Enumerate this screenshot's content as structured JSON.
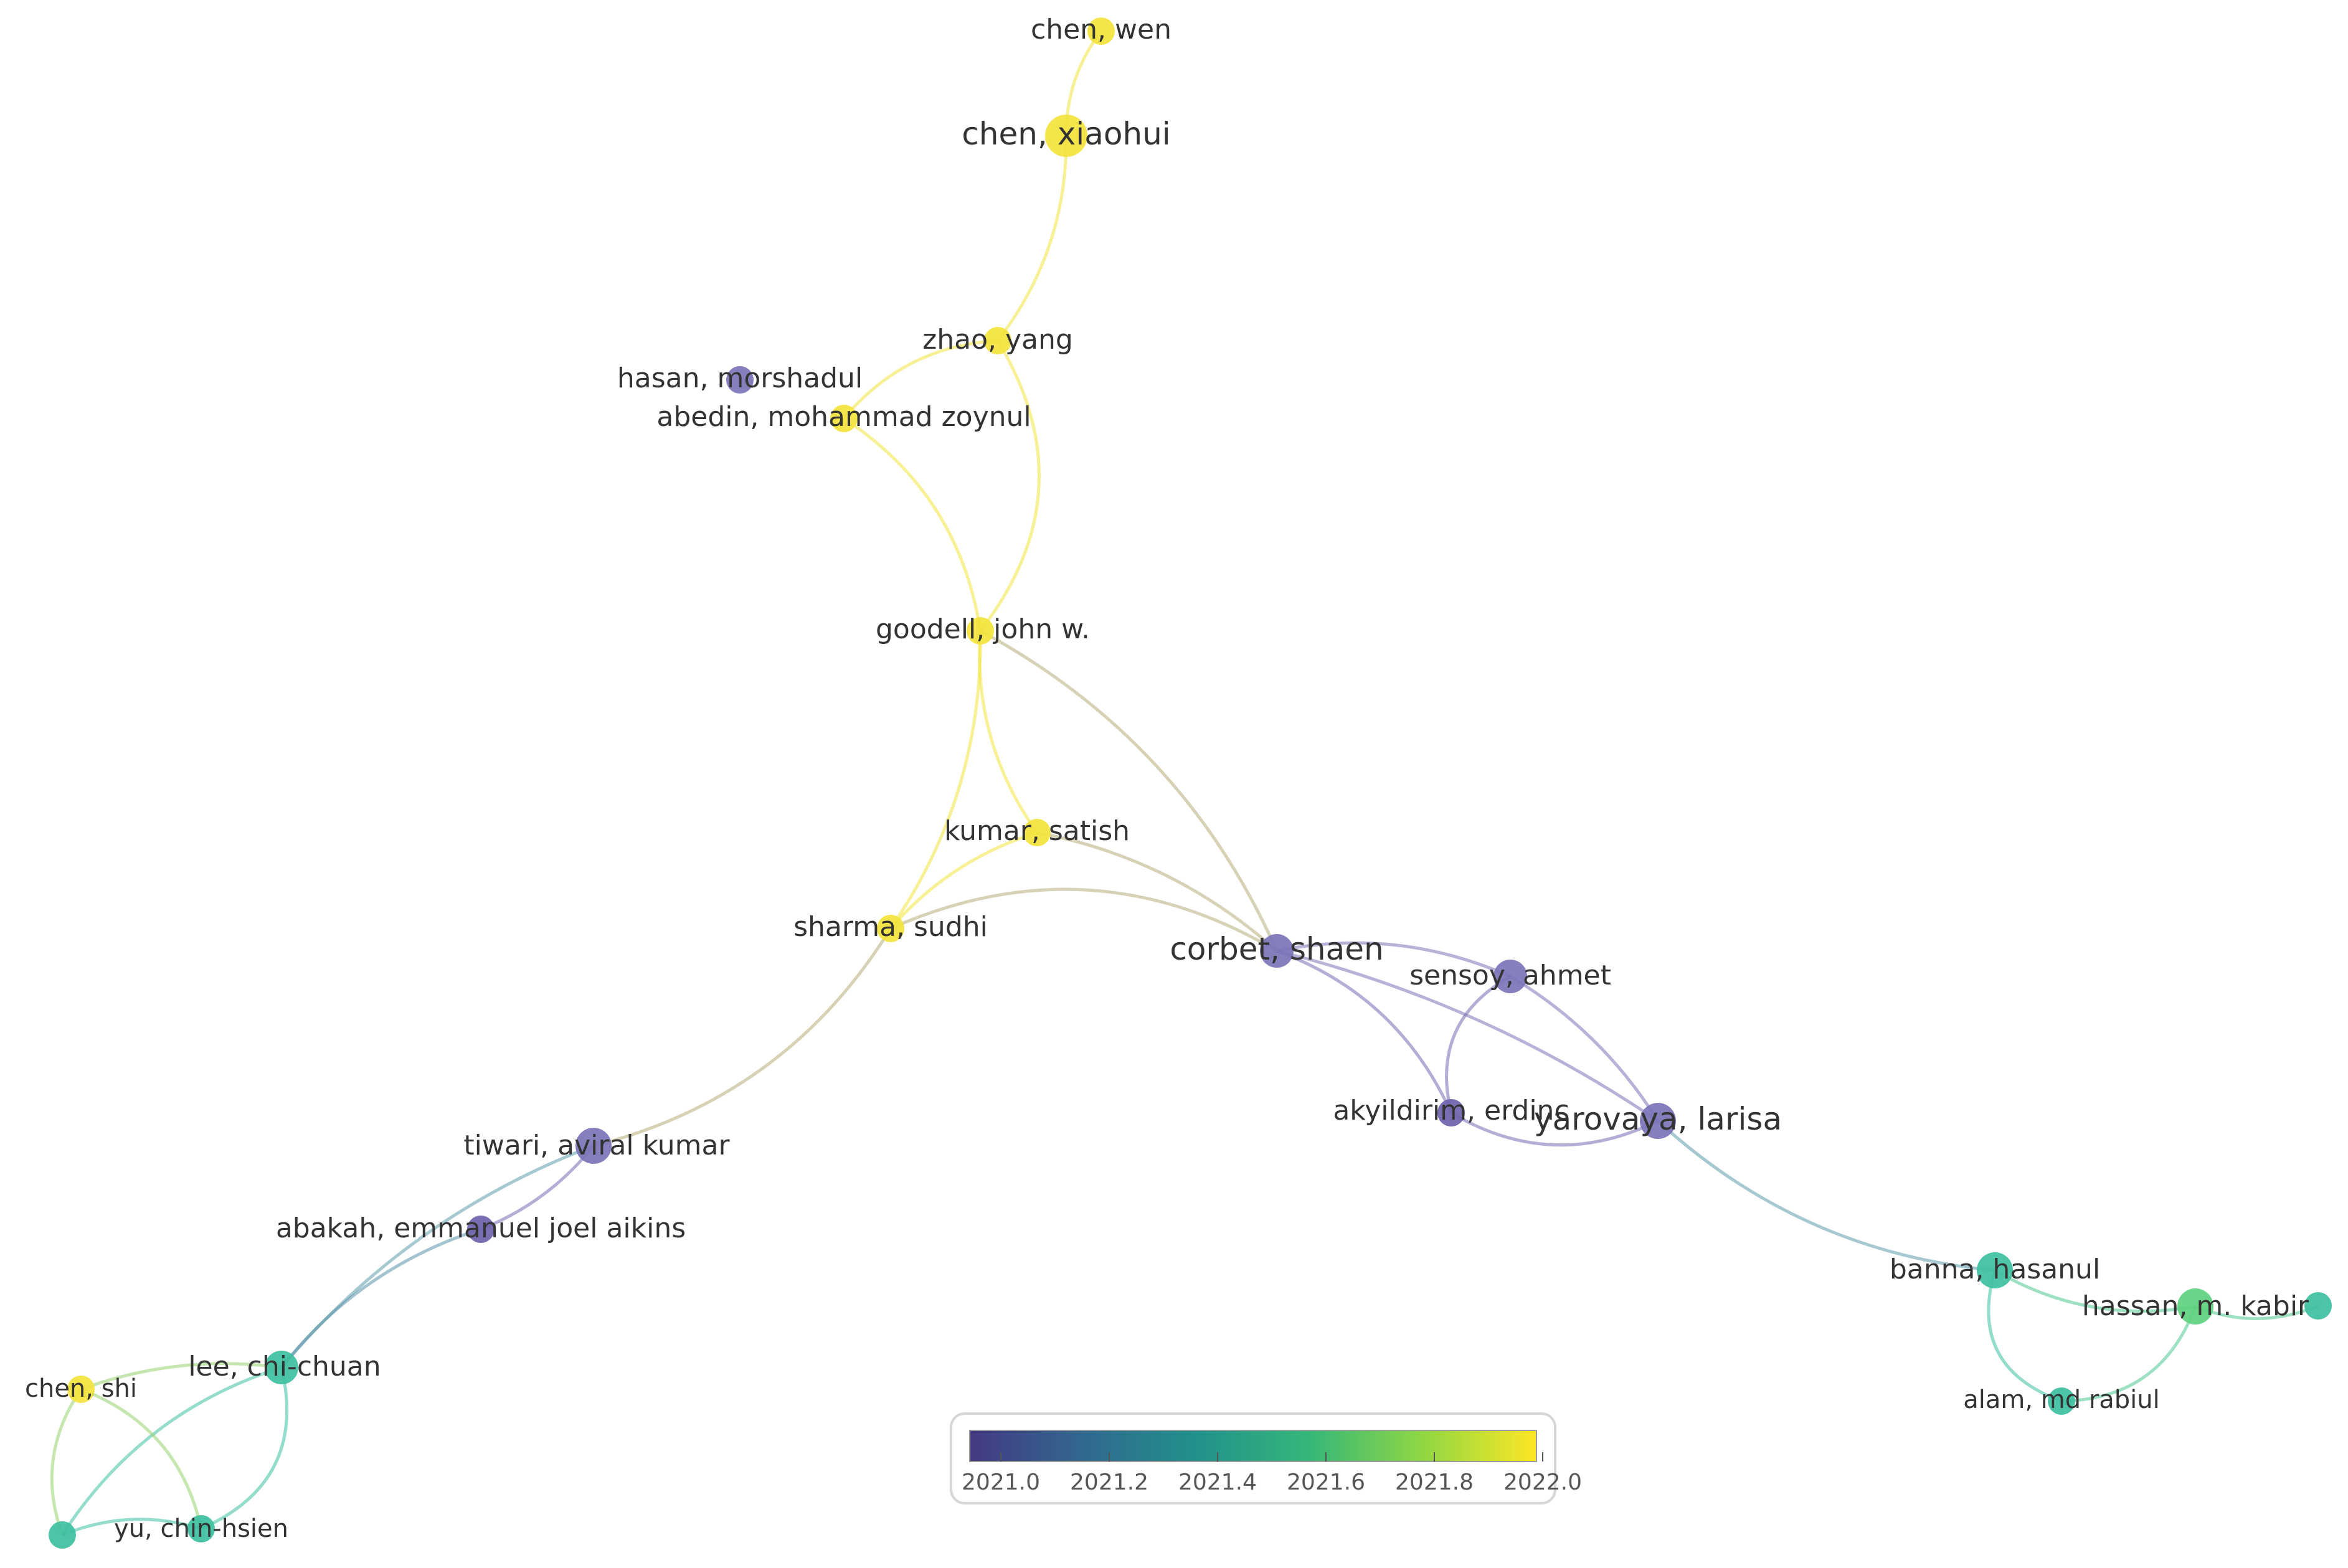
{
  "nodes": [
    {
      "id": "chen_wen",
      "label": "chen, wen",
      "year": 2022.0,
      "color": "#f3e33c"
    },
    {
      "id": "chen_xiaohui",
      "label": "chen, xiaohui",
      "year": 2022.0,
      "color": "#f3e33c"
    },
    {
      "id": "zhao_yang",
      "label": "zhao, yang",
      "year": 2022.0,
      "color": "#f3e33c"
    },
    {
      "id": "hasan_morshadul",
      "label": "hasan, morshadul",
      "year": 2021.0,
      "color": "#7b74b8"
    },
    {
      "id": "abedin",
      "label": "abedin, mohammad zoynul",
      "year": 2022.0,
      "color": "#f3e33c"
    },
    {
      "id": "goodell",
      "label": "goodell, john w.",
      "year": 2022.0,
      "color": "#f3e33c"
    },
    {
      "id": "kumar",
      "label": "kumar, satish",
      "year": 2022.0,
      "color": "#f3e33c"
    },
    {
      "id": "sharma",
      "label": "sharma, sudhi",
      "year": 2022.0,
      "color": "#f3e33c"
    },
    {
      "id": "corbet",
      "label": "corbet, shaen",
      "year": 2021.0,
      "color": "#7b74b8"
    },
    {
      "id": "sensoy",
      "label": "sensoy, ahmet",
      "year": 2021.0,
      "color": "#7b74b8"
    },
    {
      "id": "akyildirim",
      "label": "akyildirim, erdinc",
      "year": 2021.0,
      "color": "#6c63ad"
    },
    {
      "id": "yarovaya",
      "label": "yarovaya, larisa",
      "year": 2021.0,
      "color": "#7b74b8"
    },
    {
      "id": "tiwari",
      "label": "tiwari, aviral kumar",
      "year": 2021.0,
      "color": "#7b74b8"
    },
    {
      "id": "abakah",
      "label": "abakah, emmanuel joel aikins",
      "year": 2021.0,
      "color": "#6c63ad"
    },
    {
      "id": "lee",
      "label": "lee, chi-chuan",
      "year": 2021.5,
      "color": "#3dbfa0"
    },
    {
      "id": "chen_shi",
      "label": "chen, shi",
      "year": 2022.0,
      "color": "#f3e33c"
    },
    {
      "id": "yu",
      "label": "yu, chin-hsien",
      "year": 2021.5,
      "color": "#3dbfa0"
    },
    {
      "id": "unlabeled_bl",
      "label": "",
      "year": 2021.5,
      "color": "#3dbfa0"
    },
    {
      "id": "banna",
      "label": "banna, hasanul",
      "year": 2021.5,
      "color": "#3dbfa0"
    },
    {
      "id": "hassan",
      "label": "hassan, m. kabir",
      "year": 2021.7,
      "color": "#5dd07e"
    },
    {
      "id": "alam",
      "label": "alam, md rabiul",
      "year": 2021.5,
      "color": "#3dbfa0"
    },
    {
      "id": "unlabeled_r",
      "label": "",
      "year": 2021.5,
      "color": "#3dbfa0"
    }
  ],
  "edges": [
    [
      "chen_wen",
      "chen_xiaohui"
    ],
    [
      "chen_xiaohui",
      "zhao_yang"
    ],
    [
      "zhao_yang",
      "abedin"
    ],
    [
      "zhao_yang",
      "goodell"
    ],
    [
      "abedin",
      "goodell"
    ],
    [
      "goodell",
      "kumar"
    ],
    [
      "goodell",
      "sharma"
    ],
    [
      "goodell",
      "corbet"
    ],
    [
      "kumar",
      "sharma"
    ],
    [
      "kumar",
      "corbet"
    ],
    [
      "sharma",
      "corbet"
    ],
    [
      "sharma",
      "tiwari"
    ],
    [
      "corbet",
      "sensoy"
    ],
    [
      "corbet",
      "akyildirim"
    ],
    [
      "corbet",
      "yarovaya"
    ],
    [
      "sensoy",
      "akyildirim"
    ],
    [
      "sensoy",
      "yarovaya"
    ],
    [
      "akyildirim",
      "yarovaya"
    ],
    [
      "yarovaya",
      "banna"
    ],
    [
      "tiwari",
      "abakah"
    ],
    [
      "tiwari",
      "lee"
    ],
    [
      "abakah",
      "lee"
    ],
    [
      "lee",
      "chen_shi"
    ],
    [
      "lee",
      "yu"
    ],
    [
      "lee",
      "unlabeled_bl"
    ],
    [
      "chen_shi",
      "yu"
    ],
    [
      "chen_shi",
      "unlabeled_bl"
    ],
    [
      "unlabeled_bl",
      "yu"
    ],
    [
      "banna",
      "hassan"
    ],
    [
      "banna",
      "alam"
    ],
    [
      "hassan",
      "alam"
    ],
    [
      "hassan",
      "unlabeled_r"
    ]
  ],
  "colorbar": {
    "min": 2021.0,
    "max": 2022.0,
    "ticks": [
      "2021.0",
      "2021.2",
      "2021.4",
      "2021.6",
      "2021.8",
      "2022.0"
    ],
    "colors": [
      "#443983",
      "#31688e",
      "#21918c",
      "#35b779",
      "#90d743",
      "#fde725"
    ]
  }
}
